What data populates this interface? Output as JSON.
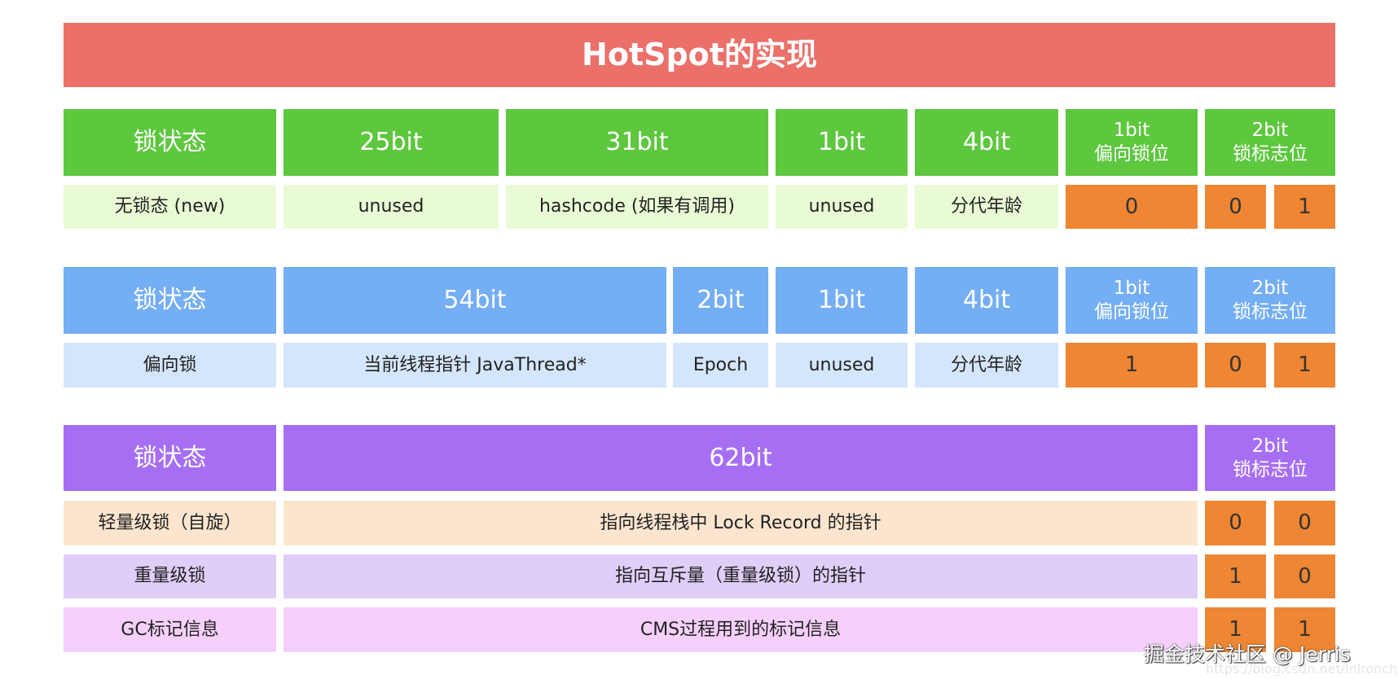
{
  "title": "HotSpot的实现",
  "colors": {
    "title": "#EB7069",
    "green": "#5DC73E",
    "light_green": "#E9FBD4",
    "blue": "#74AEF4",
    "light_blue": "#D4E6FB",
    "purple": "#A66FF3",
    "orange": "#EE8633",
    "peach": "#FCE5CF",
    "lavender": "#DFCEF8",
    "pink": "#F5D0FB"
  },
  "section1": {
    "header": [
      "锁状态",
      "25bit",
      "31bit",
      "1bit",
      "4bit",
      "1bit\n偏向锁位",
      "2bit\n锁标志位"
    ],
    "row": [
      "无锁态 (new)",
      "unused",
      "hashcode (如果有调用)",
      "unused",
      "分代年龄",
      "0",
      "0",
      "1"
    ]
  },
  "section2": {
    "header": [
      "锁状态",
      "54bit",
      "2bit",
      "1bit",
      "4bit",
      "1bit\n偏向锁位",
      "2bit\n锁标志位"
    ],
    "row": [
      "偏向锁",
      "当前线程指针 JavaThread*",
      "Epoch",
      "unused",
      "分代年龄",
      "1",
      "0",
      "1"
    ]
  },
  "section3": {
    "header": [
      "锁状态",
      "62bit",
      "2bit\n锁标志位"
    ],
    "rows": [
      [
        "轻量级锁（自旋）",
        "指向线程栈中 Lock Record 的指针",
        "0",
        "0"
      ],
      [
        "重量级锁",
        "指向互斥量（重量级锁）的指针",
        "1",
        "0"
      ],
      [
        "GC标记信息",
        "CMS过程用到的标记信息",
        "1",
        "1"
      ]
    ]
  },
  "watermark": {
    "text": "掘金技术社区 @ Jerris",
    "url": "https://blog.csdn.net/lnlronchang"
  }
}
